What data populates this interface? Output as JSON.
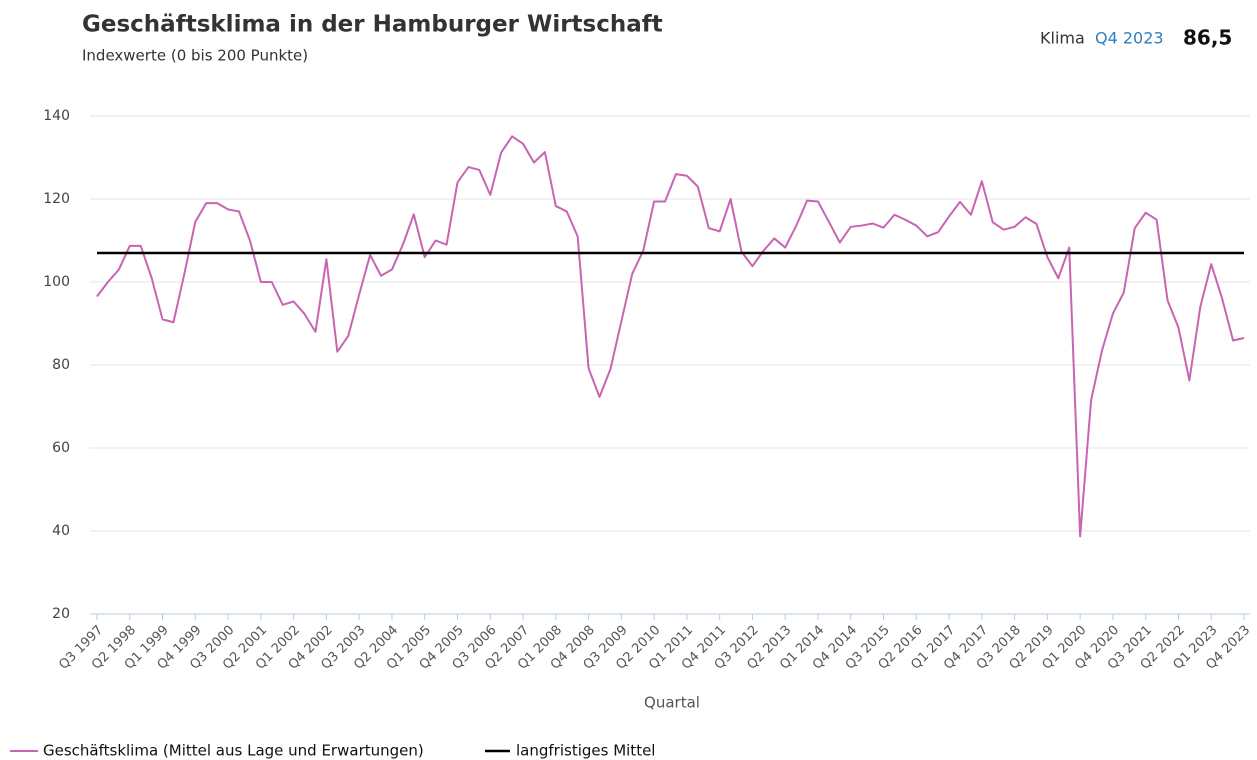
{
  "chart_data": {
    "type": "line",
    "title": "Geschäftsklima in der Hamburger Wirtschaft",
    "subtitle": "Indexwerte (0 bis 200 Punkte)",
    "kpi": {
      "label": "Klima",
      "period": "Q4 2023",
      "value": 86.5,
      "value_label": "86,5"
    },
    "x_label": "Quartal",
    "categories": [
      "Q3 1997",
      null,
      null,
      "Q2 1998",
      null,
      null,
      "Q1 1999",
      null,
      null,
      "Q4 1999",
      null,
      null,
      "Q3 2000",
      null,
      null,
      "Q2 2001",
      null,
      null,
      "Q1 2002",
      null,
      null,
      "Q4 2002",
      null,
      null,
      "Q3 2003",
      null,
      null,
      "Q2 2004",
      null,
      null,
      "Q1 2005",
      null,
      null,
      "Q4 2005",
      null,
      null,
      "Q3 2006",
      null,
      null,
      "Q2 2007",
      null,
      null,
      "Q1 2008",
      null,
      null,
      "Q4 2008",
      null,
      null,
      "Q3 2009",
      null,
      null,
      "Q2 2010",
      null,
      null,
      "Q1 2011",
      null,
      null,
      "Q4 2011",
      null,
      null,
      "Q3 2012",
      null,
      null,
      "Q2 2013",
      null,
      null,
      "Q1 2014",
      null,
      null,
      "Q4 2014",
      null,
      null,
      "Q3 2015",
      null,
      null,
      "Q2 2016",
      null,
      null,
      "Q1 2017",
      null,
      null,
      "Q4 2017",
      null,
      null,
      "Q3 2018",
      null,
      null,
      "Q2 2019",
      null,
      null,
      "Q1 2020",
      null,
      null,
      "Q4 2020",
      null,
      null,
      "Q3 2021",
      null,
      null,
      "Q2 2022",
      null,
      null,
      "Q1 2023",
      null,
      null,
      "Q4 2023"
    ],
    "series": [
      {
        "name": "Geschäftsklima (Mittel aus Lage und Erwartungen)",
        "color": "#c964b1",
        "values": [
          96.5,
          100,
          103,
          108.7,
          108.7,
          101,
          91,
          90.3,
          102,
          114.5,
          119,
          119,
          117.5,
          117,
          110,
          100,
          100,
          94.5,
          95.3,
          92.3,
          88,
          105.5,
          83.2,
          87,
          97,
          106.5,
          101.5,
          103,
          109,
          116.3,
          106,
          110,
          109,
          124,
          127.7,
          127,
          121,
          131.2,
          135.1,
          133.3,
          128.8,
          131.3,
          118.3,
          117,
          111,
          79.2,
          72.3,
          79,
          90.5,
          102,
          107.5,
          119.4,
          119.4,
          126,
          125.6,
          123,
          113,
          112.2,
          120,
          107.3,
          103.8,
          107.5,
          110.5,
          108.3,
          113.5,
          119.6,
          119.4,
          114.5,
          109.5,
          113.3,
          113.6,
          114.1,
          113.1,
          116.2,
          115,
          113.6,
          111,
          112,
          115.8,
          119.3,
          116.2,
          124.3,
          114.4,
          112.6,
          113.3,
          115.6,
          114,
          106,
          100.9,
          108.3,
          38.7,
          71.5,
          83.5,
          92.4,
          97.5,
          113,
          116.7,
          115,
          95.6,
          89,
          76.3,
          94,
          104.3,
          96,
          85.9,
          86.5
        ]
      }
    ],
    "mean": {
      "name": "langfristiges Mittel",
      "value": 107,
      "color": "#000000"
    },
    "ylim": [
      20,
      140
    ],
    "yticks": [
      20,
      40,
      60,
      80,
      100,
      120,
      140
    ],
    "grid": true
  }
}
